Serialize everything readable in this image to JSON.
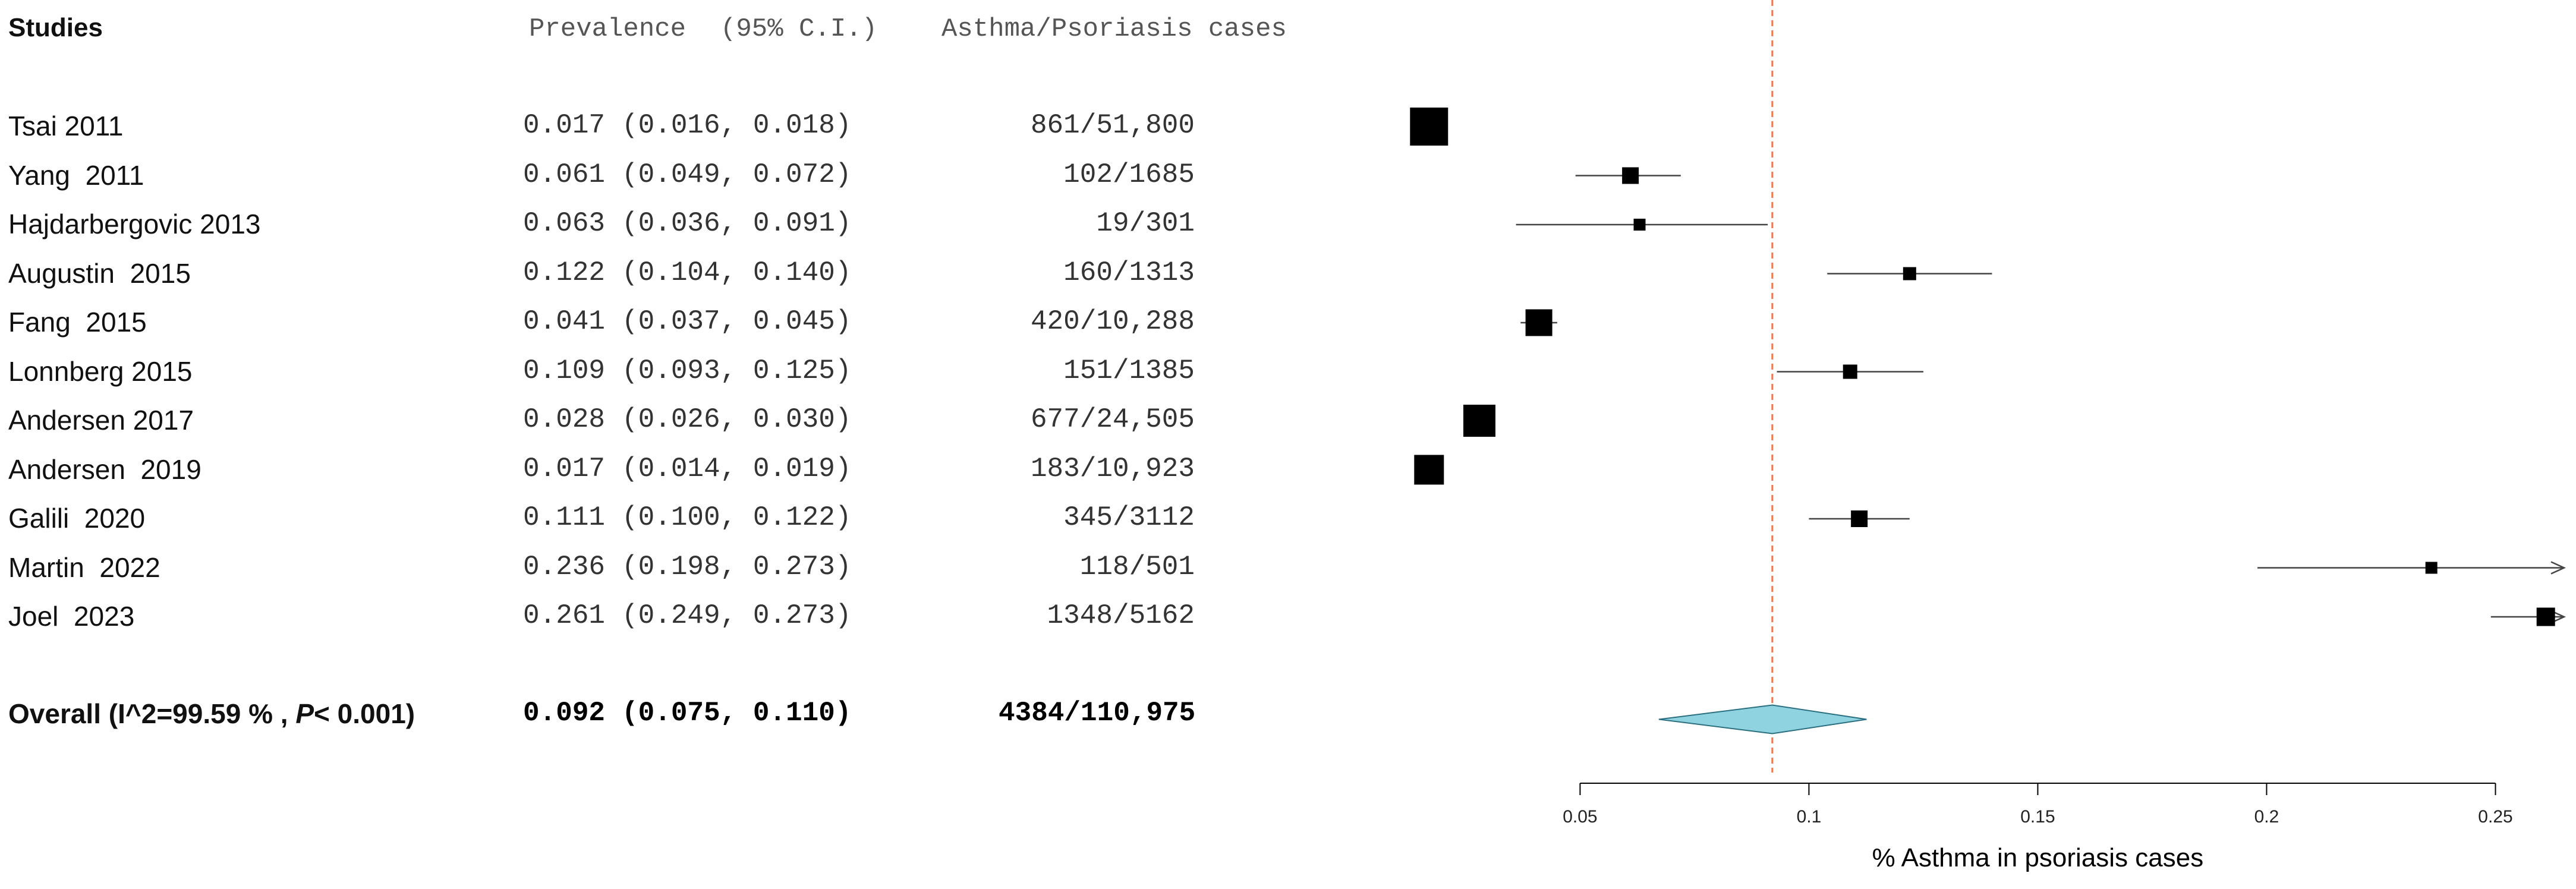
{
  "headers": {
    "studies": "Studies",
    "prevalence": "Prevalence",
    "ci": "(95% C.I.)",
    "cases": "Asthma/Psoriasis cases"
  },
  "overall": {
    "label_prefix": "Overall (I^2=99.59 % ,",
    "label_p": "P",
    "label_suffix": "< 0.001)",
    "prevalence": "0.092",
    "ci": "(0.075, 0.110)",
    "cases": "4384/110,975"
  },
  "chart_data": {
    "type": "forest",
    "xlabel": "% Asthma in psoriasis cases",
    "xticks": [
      0.05,
      0.1,
      0.15,
      0.2,
      0.25
    ],
    "xtick_labels": [
      "0.05",
      "0.1",
      "0.15",
      "0.2",
      "0.25"
    ],
    "xlim": [
      0.008,
      0.265
    ],
    "reference_line": 0.092,
    "colors": {
      "diamond": "#8fd3e0",
      "reference": "#f07850",
      "marker": "#000000"
    },
    "studies": [
      {
        "name": "Tsai 2011",
        "prevalence": 0.017,
        "ci_low": 0.016,
        "ci_high": 0.018,
        "prev_text": "0.017",
        "ci_text": "(0.016, 0.018)",
        "cases": "861/51,800",
        "weight": 1.0
      },
      {
        "name": "Yang  2011",
        "prevalence": 0.061,
        "ci_low": 0.049,
        "ci_high": 0.072,
        "prev_text": "0.061",
        "ci_text": "(0.049, 0.072)",
        "cases": "102/1685",
        "weight": 0.28
      },
      {
        "name": "Hajdarbergovic 2013",
        "prevalence": 0.063,
        "ci_low": 0.036,
        "ci_high": 0.091,
        "prev_text": "0.063",
        "ci_text": "(0.036, 0.091)",
        "cases": "19/301",
        "weight": 0.12
      },
      {
        "name": "Augustin  2015",
        "prevalence": 0.122,
        "ci_low": 0.104,
        "ci_high": 0.14,
        "prev_text": "0.122",
        "ci_text": "(0.104, 0.140)",
        "cases": "160/1313",
        "weight": 0.16
      },
      {
        "name": "Fang  2015",
        "prevalence": 0.041,
        "ci_low": 0.037,
        "ci_high": 0.045,
        "prev_text": "0.041",
        "ci_text": "(0.037, 0.045)",
        "cases": "420/10,288",
        "weight": 0.62
      },
      {
        "name": "Lonnberg 2015",
        "prevalence": 0.109,
        "ci_low": 0.093,
        "ci_high": 0.125,
        "prev_text": "0.109",
        "ci_text": "(0.093, 0.125)",
        "cases": "151/1385",
        "weight": 0.2
      },
      {
        "name": "Andersen 2017",
        "prevalence": 0.028,
        "ci_low": 0.026,
        "ci_high": 0.03,
        "prev_text": "0.028",
        "ci_text": "(0.026, 0.030)",
        "cases": "677/24,505",
        "weight": 0.8
      },
      {
        "name": "Andersen  2019",
        "prevalence": 0.017,
        "ci_low": 0.014,
        "ci_high": 0.019,
        "prev_text": "0.017",
        "ci_text": "(0.014, 0.019)",
        "cases": "183/10,923",
        "weight": 0.72
      },
      {
        "name": "Galili  2020",
        "prevalence": 0.111,
        "ci_low": 0.1,
        "ci_high": 0.122,
        "prev_text": "0.111",
        "ci_text": "(0.100, 0.122)",
        "cases": "345/3112",
        "weight": 0.28
      },
      {
        "name": "Martin  2022",
        "prevalence": 0.236,
        "ci_low": 0.198,
        "ci_high": 0.273,
        "prev_text": "0.236",
        "ci_text": "(0.198, 0.273)",
        "cases": "118/501",
        "weight": 0.12
      },
      {
        "name": "Joel  2023",
        "prevalence": 0.261,
        "ci_low": 0.249,
        "ci_high": 0.273,
        "prev_text": "0.261",
        "ci_text": "(0.249, 0.273)",
        "cases": "1348/5162",
        "weight": 0.34
      }
    ],
    "overall": {
      "prevalence": 0.092,
      "ci_low": 0.075,
      "ci_high": 0.11
    }
  }
}
